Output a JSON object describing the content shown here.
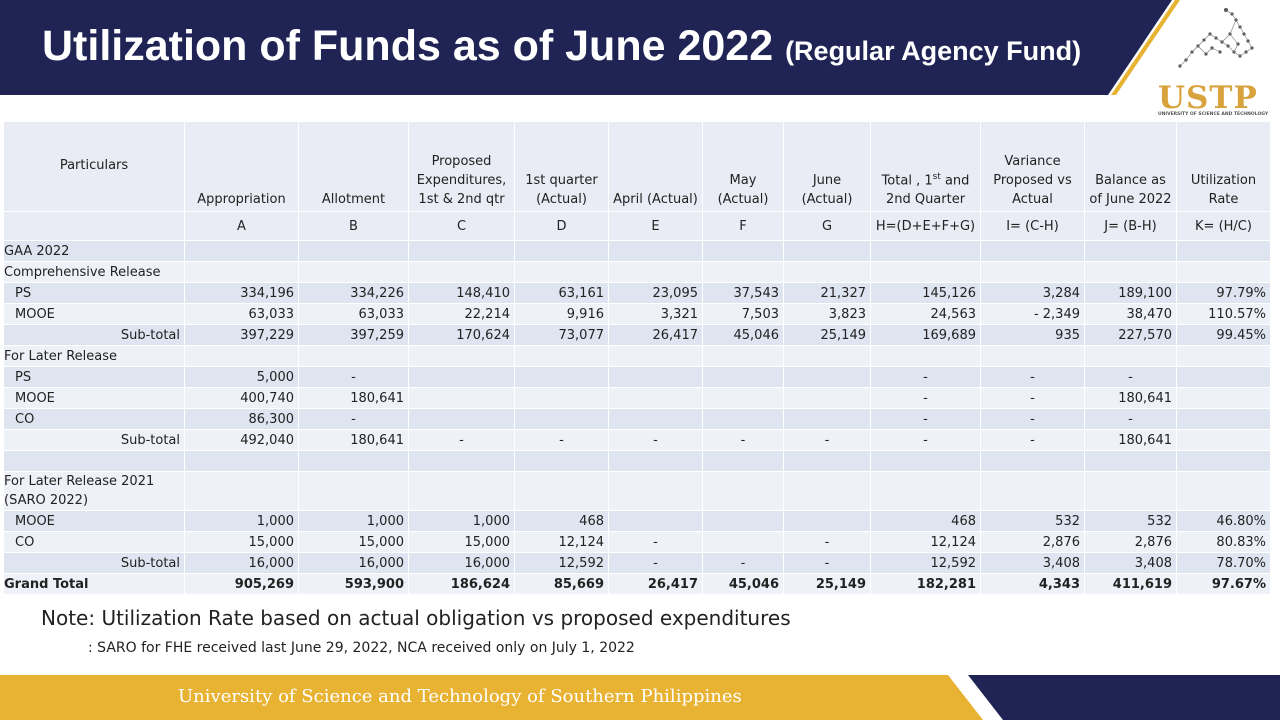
{
  "header": {
    "title": "Utilization of Funds as of June 2022",
    "subtitle": "(Regular Agency Fund)",
    "logo_text": "USTP",
    "logo_small": "UNIVERSITY OF SCIENCE AND TECHNOLOGY",
    "colors": {
      "navy": "#1f2455",
      "gold": "#e8b233"
    }
  },
  "table": {
    "headers": {
      "particulars": "Particulars",
      "appropriation": "Appropriation",
      "allotment": "Allotment",
      "proposed": "Proposed Expenditures, 1st & 2nd qtr",
      "q1": "1st quarter (Actual)",
      "april": "April (Actual)",
      "may": "May (Actual)",
      "june": "June (Actual)",
      "total_a": "Total , 1",
      "total_sup": "st",
      "total_b": " and 2nd Quarter",
      "variance": "Variance Proposed vs Actual",
      "balance": "Balance as of June 2022",
      "util": "Utilization Rate"
    },
    "letters": [
      "A",
      "B",
      "C",
      "D",
      "E",
      "F",
      "G",
      "H=(D+E+F+G)",
      "I= (C-H)",
      "J= (B-H)",
      "K= (H/C)"
    ],
    "rows": [
      {
        "label": "GAA 2022",
        "style": "plain",
        "cells": [
          "",
          "",
          "",
          "",
          "",
          "",
          "",
          "",
          "",
          "",
          ""
        ]
      },
      {
        "label": "Comprehensive Release",
        "style": "plain",
        "cells": [
          "",
          "",
          "",
          "",
          "",
          "",
          "",
          "",
          "",
          "",
          ""
        ]
      },
      {
        "label": "PS",
        "style": "ind",
        "cells": [
          "334,196",
          "334,226",
          "148,410",
          "63,161",
          "23,095",
          "37,543",
          "21,327",
          "145,126",
          "3,284",
          "189,100",
          "97.79%"
        ]
      },
      {
        "label": "MOOE",
        "style": "ind",
        "cells": [
          "63,033",
          "63,033",
          "22,214",
          "9,916",
          "3,321",
          "7,503",
          "3,823",
          "24,563",
          "-    2,349",
          "38,470",
          "110.57%"
        ]
      },
      {
        "label": "Sub-total",
        "style": "sub",
        "cells": [
          "397,229",
          "397,259",
          "170,624",
          "73,077",
          "26,417",
          "45,046",
          "25,149",
          "169,689",
          "935",
          "227,570",
          "99.45%"
        ]
      },
      {
        "label": "For Later Release",
        "style": "plain",
        "cells": [
          "",
          "",
          "",
          "",
          "",
          "",
          "",
          "",
          "",
          "",
          ""
        ]
      },
      {
        "label": "PS",
        "style": "ind",
        "cells": [
          "5,000",
          "-",
          "",
          "",
          "",
          "",
          "",
          "-",
          "-",
          "-",
          ""
        ]
      },
      {
        "label": "MOOE",
        "style": "ind",
        "cells": [
          "400,740",
          "180,641",
          "",
          "",
          "",
          "",
          "",
          "-",
          "-",
          "180,641",
          ""
        ]
      },
      {
        "label": "CO",
        "style": "ind",
        "cells": [
          "86,300",
          "-",
          "",
          "",
          "",
          "",
          "",
          "-",
          "-",
          "-",
          ""
        ]
      },
      {
        "label": "Sub-total",
        "style": "sub",
        "cells": [
          "492,040",
          "180,641",
          "-",
          "-",
          "-",
          "-",
          "-",
          "-",
          "-",
          "180,641",
          ""
        ]
      },
      {
        "label": "",
        "style": "plain",
        "cells": [
          "",
          "",
          "",
          "",
          "",
          "",
          "",
          "",
          "",
          "",
          ""
        ]
      },
      {
        "label": "For Later Release 2021 (SARO 2022)",
        "style": "wrap",
        "cells": [
          "",
          "",
          "",
          "",
          "",
          "",
          "",
          "",
          "",
          "",
          ""
        ]
      },
      {
        "label": "MOOE",
        "style": "ind",
        "cells": [
          "1,000",
          "1,000",
          "1,000",
          "468",
          "",
          "",
          "",
          "468",
          "532",
          "532",
          "46.80%"
        ]
      },
      {
        "label": "CO",
        "style": "ind",
        "cells": [
          "15,000",
          "15,000",
          "15,000",
          "12,124",
          "-",
          "",
          "-",
          "12,124",
          "2,876",
          "2,876",
          "80.83%"
        ]
      },
      {
        "label": "Sub-total",
        "style": "sub",
        "cells": [
          "16,000",
          "16,000",
          "16,000",
          "12,592",
          "-",
          "-",
          "-",
          "12,592",
          "3,408",
          "3,408",
          "78.70%"
        ]
      },
      {
        "label": "Grand Total",
        "style": "grand",
        "cells": [
          "905,269",
          "593,900",
          "186,624",
          "85,669",
          "26,417",
          "45,046",
          "25,149",
          "182,281",
          "4,343",
          "411,619",
          "97.67%"
        ]
      }
    ]
  },
  "notes": {
    "note1": "Note: Utilization Rate based on actual obligation vs proposed expenditures",
    "note2": ": SARO for FHE received last June 29, 2022,  NCA received only on July 1, 2022"
  },
  "footer": {
    "text": "University of Science and Technology of Southern Philippines"
  }
}
